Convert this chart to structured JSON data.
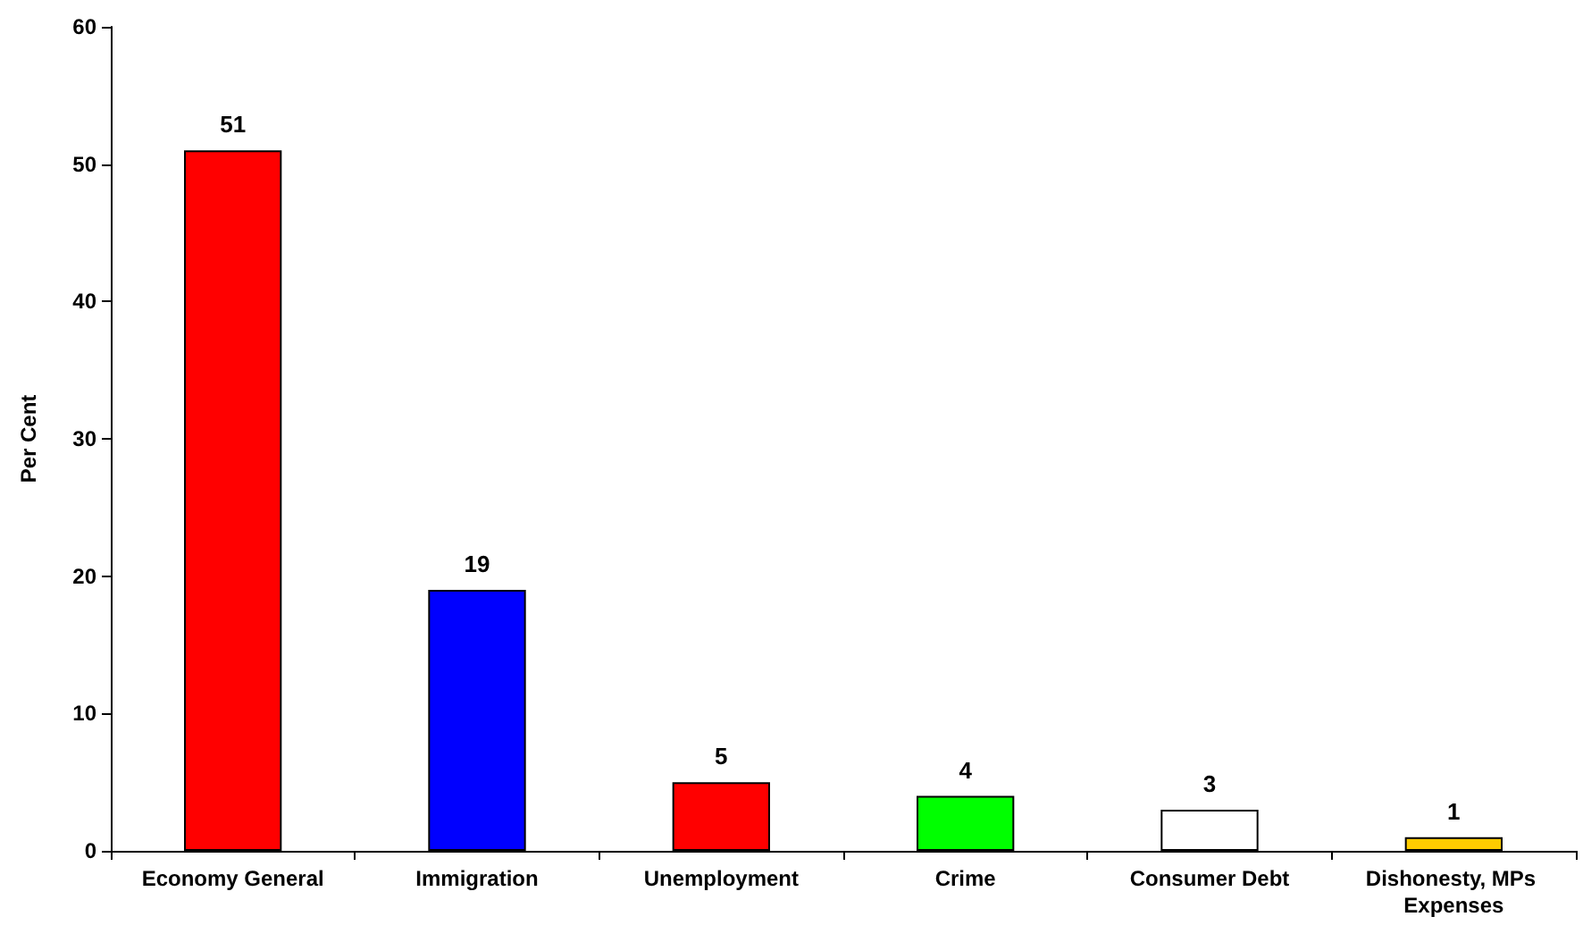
{
  "chart_data": {
    "type": "bar",
    "ylabel": "Per Cent",
    "categories": [
      "Economy General",
      "Immigration",
      "Unemployment",
      "Crime",
      "Consumer Debt",
      "Dishonesty, MPs Expenses"
    ],
    "values": [
      51,
      19,
      5,
      4,
      3,
      1
    ],
    "colors": [
      "#ff0000",
      "#0000ff",
      "#ff0000",
      "#00ff00",
      "#ffffff",
      "#ffcc00"
    ],
    "ylim": [
      0,
      60
    ],
    "yticks": [
      0,
      10,
      20,
      30,
      40,
      50,
      60
    ],
    "grid": false,
    "data_labels": true
  }
}
